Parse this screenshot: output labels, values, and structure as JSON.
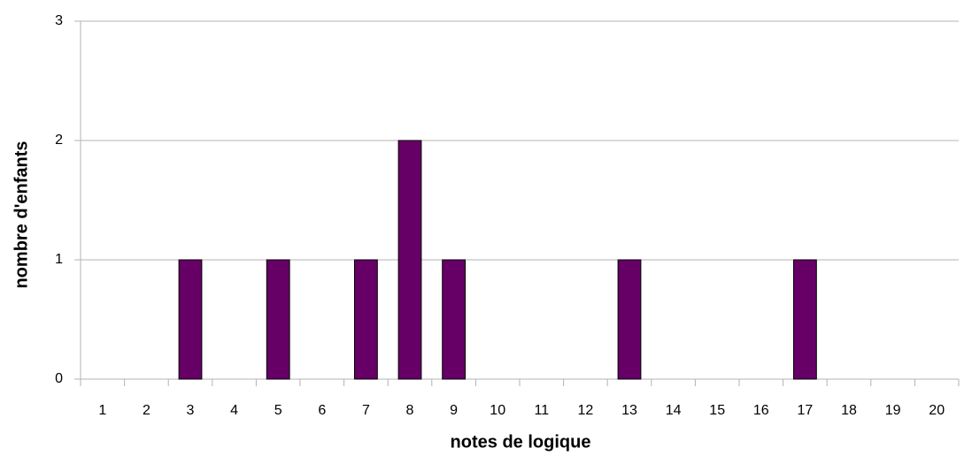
{
  "chart_data": {
    "type": "bar",
    "x_label": "notes de logique",
    "y_label": "nombre d'enfants",
    "categories": [
      "1",
      "2",
      "3",
      "4",
      "5",
      "6",
      "7",
      "8",
      "9",
      "10",
      "11",
      "12",
      "13",
      "14",
      "15",
      "16",
      "17",
      "18",
      "19",
      "20"
    ],
    "values": [
      0,
      0,
      1,
      0,
      1,
      0,
      1,
      2,
      1,
      0,
      0,
      0,
      1,
      0,
      0,
      0,
      1,
      0,
      0,
      0
    ],
    "color": "#660066",
    "ylim": [
      0,
      3
    ],
    "yticks": [
      0,
      1,
      2,
      3
    ],
    "grid": true
  }
}
